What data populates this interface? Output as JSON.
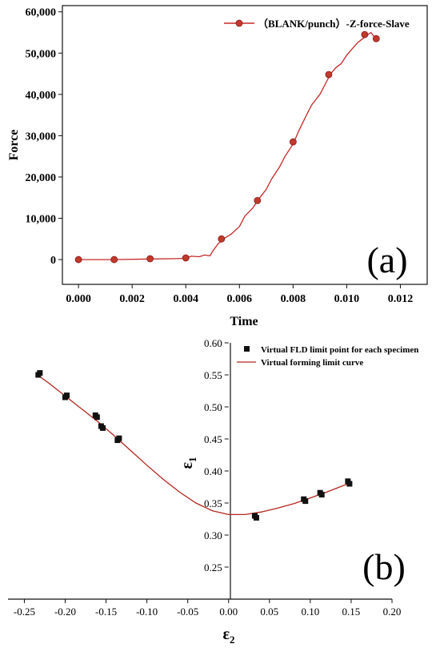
{
  "chart_data": [
    {
      "type": "line",
      "panel_label": "(a)",
      "xlabel": "Time",
      "ylabel": "Force",
      "xlim": [
        -0.0006,
        0.013
      ],
      "ylim": [
        -6000,
        61500
      ],
      "xticks": [
        "0.000",
        "0.002",
        "0.004",
        "0.006",
        "0.008",
        "0.010",
        "0.012"
      ],
      "yticks": [
        "0",
        "10,000",
        "20,000",
        "30,000",
        "40,000",
        "50,000",
        "60,000"
      ],
      "xtick_values": [
        0,
        0.002,
        0.004,
        0.006,
        0.008,
        0.01,
        0.012
      ],
      "ytick_values": [
        0,
        10000,
        20000,
        30000,
        40000,
        50000,
        60000
      ],
      "legend_position": "top-right",
      "series": [
        {
          "name": "（BLANK/punch）-Z-force-Slave",
          "color": "#c62828",
          "line_x": [
            0.0,
            0.0013,
            0.0027,
            0.0035,
            0.004,
            0.0042,
            0.0045,
            0.0047,
            0.0049,
            0.005,
            0.0052,
            0.0054,
            0.0057,
            0.006,
            0.0062,
            0.0065,
            0.0067,
            0.007,
            0.0072,
            0.0075,
            0.0077,
            0.008,
            0.0082,
            0.0085,
            0.0087,
            0.009,
            0.0092,
            0.0094,
            0.0096,
            0.0098,
            0.01,
            0.0102,
            0.0104,
            0.0106,
            0.0108,
            0.0109,
            0.011,
            0.0111
          ],
          "line_y": [
            0,
            0,
            150,
            200,
            300,
            800,
            700,
            1100,
            900,
            2000,
            3800,
            5000,
            6200,
            8000,
            10500,
            12500,
            14500,
            17000,
            19500,
            22500,
            25000,
            28000,
            31000,
            35000,
            37500,
            40000,
            42500,
            45000,
            46500,
            47500,
            49500,
            51000,
            52500,
            53500,
            54500,
            55000,
            54200,
            53500
          ],
          "markers_x": [
            0.0,
            0.00133,
            0.00267,
            0.004,
            0.00533,
            0.00667,
            0.008,
            0.00933,
            0.01067,
            0.0111
          ],
          "markers_y": [
            0,
            0,
            200,
            400,
            5000,
            14300,
            28500,
            44800,
            54500,
            53500
          ]
        }
      ]
    },
    {
      "type": "scatter",
      "panel_label": "(b)",
      "xlabel": "ε",
      "xlabel_sub": "2",
      "ylabel": "ε",
      "ylabel_sub": "1",
      "xlim": [
        -0.27,
        0.2
      ],
      "ylim": [
        0.2,
        0.6
      ],
      "xticks": [
        "-0.25",
        "-0.20",
        "-0.15",
        "-0.10",
        "-0.05",
        "0.00",
        "0.05",
        "0.10",
        "0.15",
        "0.20"
      ],
      "yticks": [
        "0.25",
        "0.30",
        "0.35",
        "0.40",
        "0.45",
        "0.50",
        "0.55",
        "0.60"
      ],
      "xtick_values": [
        -0.25,
        -0.2,
        -0.15,
        -0.1,
        -0.05,
        0,
        0.05,
        0.1,
        0.15,
        0.2
      ],
      "ytick_values": [
        0.25,
        0.3,
        0.35,
        0.4,
        0.45,
        0.5,
        0.55,
        0.6
      ],
      "legend_position": "top-right",
      "series": [
        {
          "name": "Virtual FLD limit point for each specimen",
          "color": "#111111",
          "x": [
            -0.233,
            -0.231,
            -0.2,
            -0.198,
            -0.163,
            -0.161,
            -0.156,
            -0.154,
            -0.136,
            -0.134,
            0.032,
            0.034,
            0.092,
            0.094,
            0.112,
            0.114,
            0.146,
            0.148
          ],
          "y": [
            0.55,
            0.553,
            0.515,
            0.518,
            0.487,
            0.484,
            0.47,
            0.467,
            0.448,
            0.451,
            0.33,
            0.327,
            0.356,
            0.353,
            0.366,
            0.363,
            0.384,
            0.38
          ]
        },
        {
          "name": "Virtual forming limit curve",
          "color": "#b3261e",
          "x": [
            -0.235,
            -0.22,
            -0.2,
            -0.18,
            -0.16,
            -0.14,
            -0.12,
            -0.1,
            -0.08,
            -0.06,
            -0.04,
            -0.02,
            0.0,
            0.02,
            0.04,
            0.06,
            0.08,
            0.1,
            0.12,
            0.14,
            0.15
          ],
          "y": [
            0.551,
            0.537,
            0.517,
            0.497,
            0.477,
            0.455,
            0.432,
            0.409,
            0.387,
            0.367,
            0.35,
            0.338,
            0.332,
            0.332,
            0.336,
            0.342,
            0.349,
            0.358,
            0.367,
            0.377,
            0.382
          ]
        }
      ]
    }
  ]
}
